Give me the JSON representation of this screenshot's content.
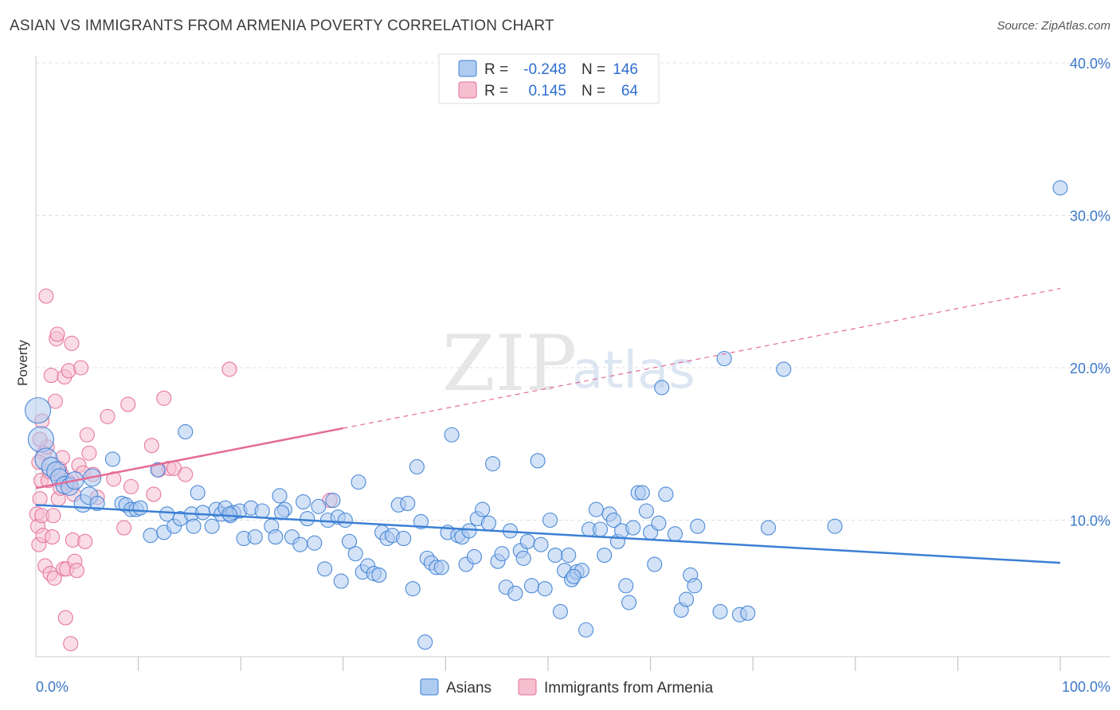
{
  "header": {
    "title": "ASIAN VS IMMIGRANTS FROM ARMENIA POVERTY CORRELATION CHART",
    "source": "Source: ZipAtlas.com"
  },
  "watermark": {
    "zip": "ZIP",
    "atlas": "atlas"
  },
  "legend_box": {
    "rows": [
      {
        "r_label": "R =",
        "r_value": "-0.248",
        "n_label": "N =",
        "n_value": "146"
      },
      {
        "r_label": "R =",
        "r_value": "0.145",
        "n_label": "N =",
        "n_value": "64"
      }
    ]
  },
  "bottom_legend": {
    "items": [
      {
        "label": "Asians"
      },
      {
        "label": "Immigrants from Armenia"
      }
    ]
  },
  "colors": {
    "blue": "#3b7fd4",
    "blue_fill": "#aecbf0",
    "pink": "#e46c98",
    "pink_fill": "#f6bfd0",
    "tick_label": "#3b78c9",
    "grid": "#dddddd"
  },
  "chart_data": {
    "type": "scatter",
    "title": "ASIAN VS IMMIGRANTS FROM ARMENIA POVERTY CORRELATION CHART",
    "xlabel": "",
    "ylabel": "Poverty",
    "xlim": [
      0,
      100
    ],
    "ylim": [
      0,
      40
    ],
    "x_tick_labels": [
      "0.0%",
      "100.0%"
    ],
    "y_ticks": [
      10,
      20,
      30,
      40
    ],
    "y_tick_labels": [
      "10.0%",
      "20.0%",
      "30.0%",
      "40.0%"
    ],
    "grid": true,
    "legend_position": "top-center",
    "series": [
      {
        "name": "Asians",
        "color": "#3b7fd4",
        "r": -0.248,
        "n": 146,
        "trend": {
          "x": [
            0,
            100
          ],
          "y": [
            11.0,
            7.2
          ],
          "dashed_from": null
        },
        "points": [
          [
            0.2,
            17.2
          ],
          [
            0.5,
            15.3
          ],
          [
            1.0,
            14.0
          ],
          [
            1.5,
            13.5
          ],
          [
            2.0,
            13.2
          ],
          [
            2.3,
            12.8
          ],
          [
            2.8,
            12.3
          ],
          [
            3.3,
            12.2
          ],
          [
            3.8,
            12.6
          ],
          [
            4.6,
            11.1
          ],
          [
            5.2,
            11.6
          ],
          [
            5.5,
            12.8
          ],
          [
            6.0,
            11.1
          ],
          [
            7.5,
            14.0
          ],
          [
            8.4,
            11.1
          ],
          [
            8.8,
            11.0
          ],
          [
            9.3,
            10.7
          ],
          [
            9.8,
            10.7
          ],
          [
            10.2,
            10.8
          ],
          [
            11.2,
            9.0
          ],
          [
            11.9,
            13.3
          ],
          [
            12.5,
            9.2
          ],
          [
            12.8,
            10.4
          ],
          [
            13.5,
            9.6
          ],
          [
            14.1,
            10.1
          ],
          [
            14.6,
            15.8
          ],
          [
            15.2,
            10.4
          ],
          [
            15.4,
            9.6
          ],
          [
            15.8,
            11.8
          ],
          [
            16.3,
            10.5
          ],
          [
            17.2,
            9.6
          ],
          [
            17.6,
            10.7
          ],
          [
            18.1,
            10.4
          ],
          [
            18.5,
            10.8
          ],
          [
            19.0,
            10.3
          ],
          [
            19.3,
            10.5
          ],
          [
            19.9,
            10.6
          ],
          [
            20.3,
            8.8
          ],
          [
            21.0,
            10.8
          ],
          [
            21.4,
            8.9
          ],
          [
            22.1,
            10.6
          ],
          [
            23.0,
            9.6
          ],
          [
            23.4,
            8.9
          ],
          [
            23.8,
            11.6
          ],
          [
            24.3,
            10.7
          ],
          [
            25.0,
            8.9
          ],
          [
            25.8,
            8.4
          ],
          [
            26.1,
            11.2
          ],
          [
            26.5,
            10.1
          ],
          [
            27.2,
            8.5
          ],
          [
            27.6,
            10.9
          ],
          [
            28.2,
            6.8
          ],
          [
            28.5,
            10.0
          ],
          [
            29.0,
            11.3
          ],
          [
            29.5,
            10.2
          ],
          [
            30.2,
            10.0
          ],
          [
            30.6,
            8.6
          ],
          [
            31.2,
            7.8
          ],
          [
            31.5,
            12.5
          ],
          [
            31.9,
            6.6
          ],
          [
            32.4,
            7.0
          ],
          [
            33.0,
            6.5
          ],
          [
            33.5,
            6.4
          ],
          [
            33.8,
            9.2
          ],
          [
            34.3,
            8.8
          ],
          [
            34.8,
            9.0
          ],
          [
            35.4,
            11.0
          ],
          [
            35.9,
            8.8
          ],
          [
            36.3,
            11.1
          ],
          [
            36.8,
            5.5
          ],
          [
            37.2,
            13.5
          ],
          [
            37.6,
            9.9
          ],
          [
            38.2,
            7.5
          ],
          [
            38.6,
            7.2
          ],
          [
            39.1,
            6.9
          ],
          [
            39.6,
            6.9
          ],
          [
            40.2,
            9.2
          ],
          [
            40.6,
            15.6
          ],
          [
            41.2,
            9.0
          ],
          [
            41.6,
            8.9
          ],
          [
            42.0,
            7.1
          ],
          [
            42.3,
            9.3
          ],
          [
            42.8,
            7.6
          ],
          [
            43.1,
            10.1
          ],
          [
            43.6,
            10.7
          ],
          [
            44.2,
            9.8
          ],
          [
            44.6,
            13.7
          ],
          [
            45.1,
            7.3
          ],
          [
            45.5,
            7.8
          ],
          [
            45.9,
            5.6
          ],
          [
            46.3,
            9.3
          ],
          [
            46.8,
            5.2
          ],
          [
            47.3,
            8.0
          ],
          [
            47.6,
            7.5
          ],
          [
            48.0,
            8.6
          ],
          [
            48.4,
            5.7
          ],
          [
            49.0,
            13.9
          ],
          [
            49.3,
            8.4
          ],
          [
            49.7,
            5.5
          ],
          [
            50.2,
            10.0
          ],
          [
            50.7,
            7.7
          ],
          [
            51.2,
            4.0
          ],
          [
            51.6,
            6.7
          ],
          [
            52.0,
            7.7
          ],
          [
            52.3,
            6.1
          ],
          [
            52.8,
            6.6
          ],
          [
            53.3,
            6.7
          ],
          [
            53.7,
            2.8
          ],
          [
            54.0,
            9.4
          ],
          [
            54.7,
            10.7
          ],
          [
            55.1,
            9.4
          ],
          [
            55.5,
            7.7
          ],
          [
            56.0,
            10.4
          ],
          [
            56.4,
            10.0
          ],
          [
            56.8,
            8.6
          ],
          [
            57.2,
            9.3
          ],
          [
            57.6,
            5.7
          ],
          [
            57.9,
            4.6
          ],
          [
            58.3,
            9.5
          ],
          [
            58.8,
            11.8
          ],
          [
            59.2,
            11.8
          ],
          [
            59.6,
            10.6
          ],
          [
            60.0,
            9.2
          ],
          [
            60.4,
            7.1
          ],
          [
            60.8,
            9.8
          ],
          [
            61.1,
            18.7
          ],
          [
            61.5,
            11.7
          ],
          [
            62.4,
            9.1
          ],
          [
            63.0,
            4.1
          ],
          [
            63.5,
            4.8
          ],
          [
            63.9,
            6.4
          ],
          [
            64.3,
            5.7
          ],
          [
            64.6,
            9.6
          ],
          [
            66.8,
            4.0
          ],
          [
            67.2,
            20.6
          ],
          [
            68.7,
            3.8
          ],
          [
            69.5,
            3.9
          ],
          [
            71.5,
            9.5
          ],
          [
            73.0,
            19.9
          ],
          [
            100,
            31.8
          ],
          [
            78.0,
            9.6
          ],
          [
            38.0,
            2.0
          ],
          [
            24.0,
            10.5
          ],
          [
            18.9,
            10.4
          ],
          [
            52.5,
            6.3
          ],
          [
            29.8,
            6.0
          ]
        ]
      },
      {
        "name": "Immigrants from Armenia",
        "color": "#e46c98",
        "r": 0.145,
        "n": 64,
        "trend": {
          "x": [
            0,
            100
          ],
          "y": [
            12.1,
            25.2
          ],
          "dashed_from": 30
        },
        "points": [
          [
            0.1,
            10.4
          ],
          [
            0.2,
            9.6
          ],
          [
            0.3,
            8.4
          ],
          [
            0.4,
            11.4
          ],
          [
            0.5,
            12.6
          ],
          [
            0.6,
            10.3
          ],
          [
            0.7,
            9.0
          ],
          [
            0.8,
            14.4
          ],
          [
            0.9,
            7.0
          ],
          [
            1.0,
            24.7
          ],
          [
            1.1,
            14.8
          ],
          [
            1.2,
            12.6
          ],
          [
            1.3,
            13.2
          ],
          [
            1.4,
            6.5
          ],
          [
            1.5,
            19.5
          ],
          [
            1.6,
            8.9
          ],
          [
            1.7,
            10.3
          ],
          [
            1.8,
            6.2
          ],
          [
            1.9,
            17.8
          ],
          [
            2.0,
            21.9
          ],
          [
            2.1,
            22.2
          ],
          [
            2.2,
            11.4
          ],
          [
            2.3,
            13.4
          ],
          [
            2.4,
            12.1
          ],
          [
            2.5,
            13.0
          ],
          [
            2.6,
            14.1
          ],
          [
            2.7,
            6.8
          ],
          [
            2.8,
            19.4
          ],
          [
            2.9,
            3.6
          ],
          [
            3.0,
            6.8
          ],
          [
            3.1,
            12.6
          ],
          [
            3.2,
            19.8
          ],
          [
            3.3,
            12.4
          ],
          [
            3.4,
            1.9
          ],
          [
            3.5,
            21.6
          ],
          [
            3.6,
            8.7
          ],
          [
            3.7,
            11.7
          ],
          [
            3.8,
            7.3
          ],
          [
            4.0,
            6.7
          ],
          [
            4.2,
            13.6
          ],
          [
            4.4,
            20.0
          ],
          [
            4.6,
            13.1
          ],
          [
            4.8,
            8.6
          ],
          [
            5.0,
            15.6
          ],
          [
            5.2,
            14.4
          ],
          [
            5.6,
            13.0
          ],
          [
            6.0,
            11.5
          ],
          [
            7.0,
            16.8
          ],
          [
            7.6,
            12.7
          ],
          [
            8.6,
            9.5
          ],
          [
            9.0,
            17.6
          ],
          [
            9.3,
            12.2
          ],
          [
            11.3,
            14.9
          ],
          [
            11.5,
            11.7
          ],
          [
            12.0,
            13.3
          ],
          [
            12.5,
            18.0
          ],
          [
            13.0,
            13.4
          ],
          [
            13.5,
            13.4
          ],
          [
            14.6,
            13.0
          ],
          [
            18.9,
            19.9
          ],
          [
            28.7,
            11.3
          ],
          [
            0.4,
            15.3
          ],
          [
            0.3,
            13.8
          ],
          [
            0.6,
            16.5
          ]
        ]
      }
    ]
  }
}
